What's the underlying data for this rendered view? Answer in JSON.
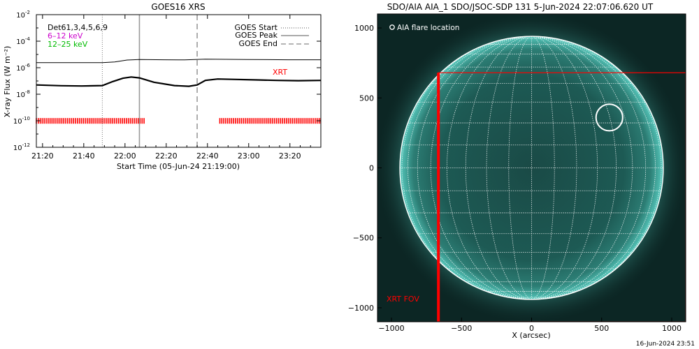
{
  "footer_timestamp": "16-Jun-2024 23:51",
  "chart_data": [
    {
      "type": "line",
      "title": "GOES16 XRS",
      "xlabel": "Start Time (05-Jun-24 21:19:00)",
      "ylabel": "X-ray Flux (W m⁻²)",
      "y_scale": "log",
      "ylim": [
        1e-12,
        0.01
      ],
      "y_ticks": [
        {
          "value": 0.01,
          "base": "10",
          "exp": "-2"
        },
        {
          "value": 0.0001,
          "base": "10",
          "exp": "-4"
        },
        {
          "value": 1e-06,
          "base": "10",
          "exp": "-6"
        },
        {
          "value": 1e-08,
          "base": "10",
          "exp": "-8"
        },
        {
          "value": 1e-10,
          "base": "10",
          "exp": "-10"
        },
        {
          "value": 1e-12,
          "base": "10",
          "exp": "-12"
        }
      ],
      "x_unit": "minutes",
      "xlim": [
        -2,
        136
      ],
      "x_ticks": [
        {
          "value": 1,
          "label": "21:20"
        },
        {
          "value": 21,
          "label": "21:40"
        },
        {
          "value": 41,
          "label": "22:00"
        },
        {
          "value": 61,
          "label": "22:20"
        },
        {
          "value": 81,
          "label": "22:40"
        },
        {
          "value": 101,
          "label": "23:00"
        },
        {
          "value": 121,
          "label": "23:20"
        }
      ],
      "legend_left": [
        {
          "text": "Det61,3,4,5,6,9",
          "color": "#000000"
        },
        {
          "text": "6–12 keV",
          "color": "#cc00cc"
        },
        {
          "text": "12–25 keV",
          "color": "#00bb00"
        }
      ],
      "legend_right": [
        {
          "text": "GOES Start",
          "style": "dotted"
        },
        {
          "text": "GOES Peak",
          "style": "solid"
        },
        {
          "text": "GOES End",
          "style": "dashed"
        }
      ],
      "annotation": {
        "text": "XRT",
        "color": "#ff0000"
      },
      "event_lines": {
        "start": 30,
        "peak": 48,
        "end": 76
      },
      "series": [
        {
          "color": "#000000",
          "x": [
            -2,
            20,
            30,
            36,
            42,
            48,
            60,
            70,
            80,
            90,
            100,
            110,
            120,
            136
          ],
          "y": [
            2.4e-06,
            2.4e-06,
            2.4e-06,
            2.7e-06,
            3.8e-06,
            4.2e-06,
            4e-06,
            3.9e-06,
            4.4e-06,
            4.3e-06,
            4.2e-06,
            4.1e-06,
            4e-06,
            4e-06
          ]
        },
        {
          "color": "#000000",
          "x": [
            -2,
            10,
            20,
            30,
            35,
            40,
            44,
            48,
            55,
            65,
            72,
            76,
            80,
            86,
            95,
            105,
            115,
            125,
            136
          ],
          "y": [
            5e-08,
            4.4e-08,
            4.2e-08,
            4.5e-08,
            9e-08,
            1.6e-07,
            2e-07,
            1.7e-07,
            8e-08,
            4.5e-08,
            4e-08,
            5e-08,
            1.1e-07,
            1.4e-07,
            1.3e-07,
            1.2e-07,
            1.1e-07,
            1.05e-07,
            1.1e-07
          ]
        }
      ],
      "xrt_coverage": {
        "color": "#ff0000",
        "y_low": 6e-11,
        "y_high": 1.6e-10,
        "intervals": [
          [
            -2,
            51
          ],
          [
            87,
            136
          ]
        ]
      }
    },
    {
      "type": "image",
      "title": "SDO/AIA AIA_1 SDO/JSOC-SDP 131  5-Jun-2024 22:07:06.620 UT",
      "xlabel": "X (arcsec)",
      "ylabel": "",
      "xlim": [
        -1100,
        1100
      ],
      "ylim": [
        -1100,
        1100
      ],
      "x_ticks": [
        -1000,
        -500,
        0,
        500,
        1000
      ],
      "y_ticks": [
        -1000,
        -500,
        0,
        500,
        1000
      ],
      "x_tick_labels": [
        "−1000",
        "−500",
        "0",
        "500",
        "1000"
      ],
      "y_tick_labels": [
        "−1000",
        "−500",
        "0",
        "500",
        "1000"
      ],
      "sun_radius_arcsec": 940,
      "grid": true,
      "flare_location": {
        "x": 555,
        "y": 360,
        "radius": 95,
        "label": "AIA flare location"
      },
      "xrt_fov": {
        "x0": -665,
        "y0": -1100,
        "x1": 1100,
        "y1": 680,
        "label": "XRT FOV",
        "color": "#ff0000"
      }
    }
  ]
}
